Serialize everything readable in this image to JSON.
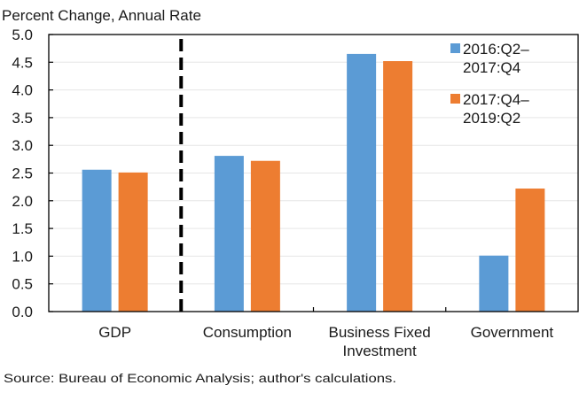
{
  "chart_data": {
    "type": "bar",
    "title": "Percent Change, Annual Rate",
    "xlabel": "",
    "ylabel": "Percent Change, Annual Rate",
    "ylim": [
      0,
      5.0
    ],
    "yticks": [
      "0.0",
      "0.5",
      "1.0",
      "1.5",
      "2.0",
      "2.5",
      "3.0",
      "3.5",
      "4.0",
      "4.5",
      "5.0"
    ],
    "ytick_values": [
      0,
      0.5,
      1.0,
      1.5,
      2.0,
      2.5,
      3.0,
      3.5,
      4.0,
      4.5,
      5.0
    ],
    "grid": true,
    "categories": [
      [
        "GDP"
      ],
      [
        "Consumption"
      ],
      [
        "Business Fixed",
        "Investment"
      ],
      [
        "Government"
      ]
    ],
    "category_names": [
      "GDP",
      "Consumption",
      "Business Fixed Investment",
      "Government"
    ],
    "series": [
      {
        "name": "2016:Q2–2017:Q4",
        "legend_lines": [
          "2016:Q2–",
          "2017:Q4"
        ],
        "color": "#5B9BD5",
        "values": [
          2.56,
          2.81,
          4.65,
          1.01
        ]
      },
      {
        "name": "2017:Q4–2019:Q2",
        "legend_lines": [
          "2017:Q4–",
          "2019:Q2"
        ],
        "color": "#ED7D31",
        "values": [
          2.51,
          2.72,
          4.52,
          2.22
        ]
      }
    ],
    "legend_position": "top-right",
    "annotations": [
      {
        "type": "vertical-dashed-separator",
        "between_categories": [
          "GDP",
          "Consumption"
        ],
        "color": "#000000"
      }
    ],
    "source": "Source: Bureau of Economic Analysis; author's calculations."
  }
}
